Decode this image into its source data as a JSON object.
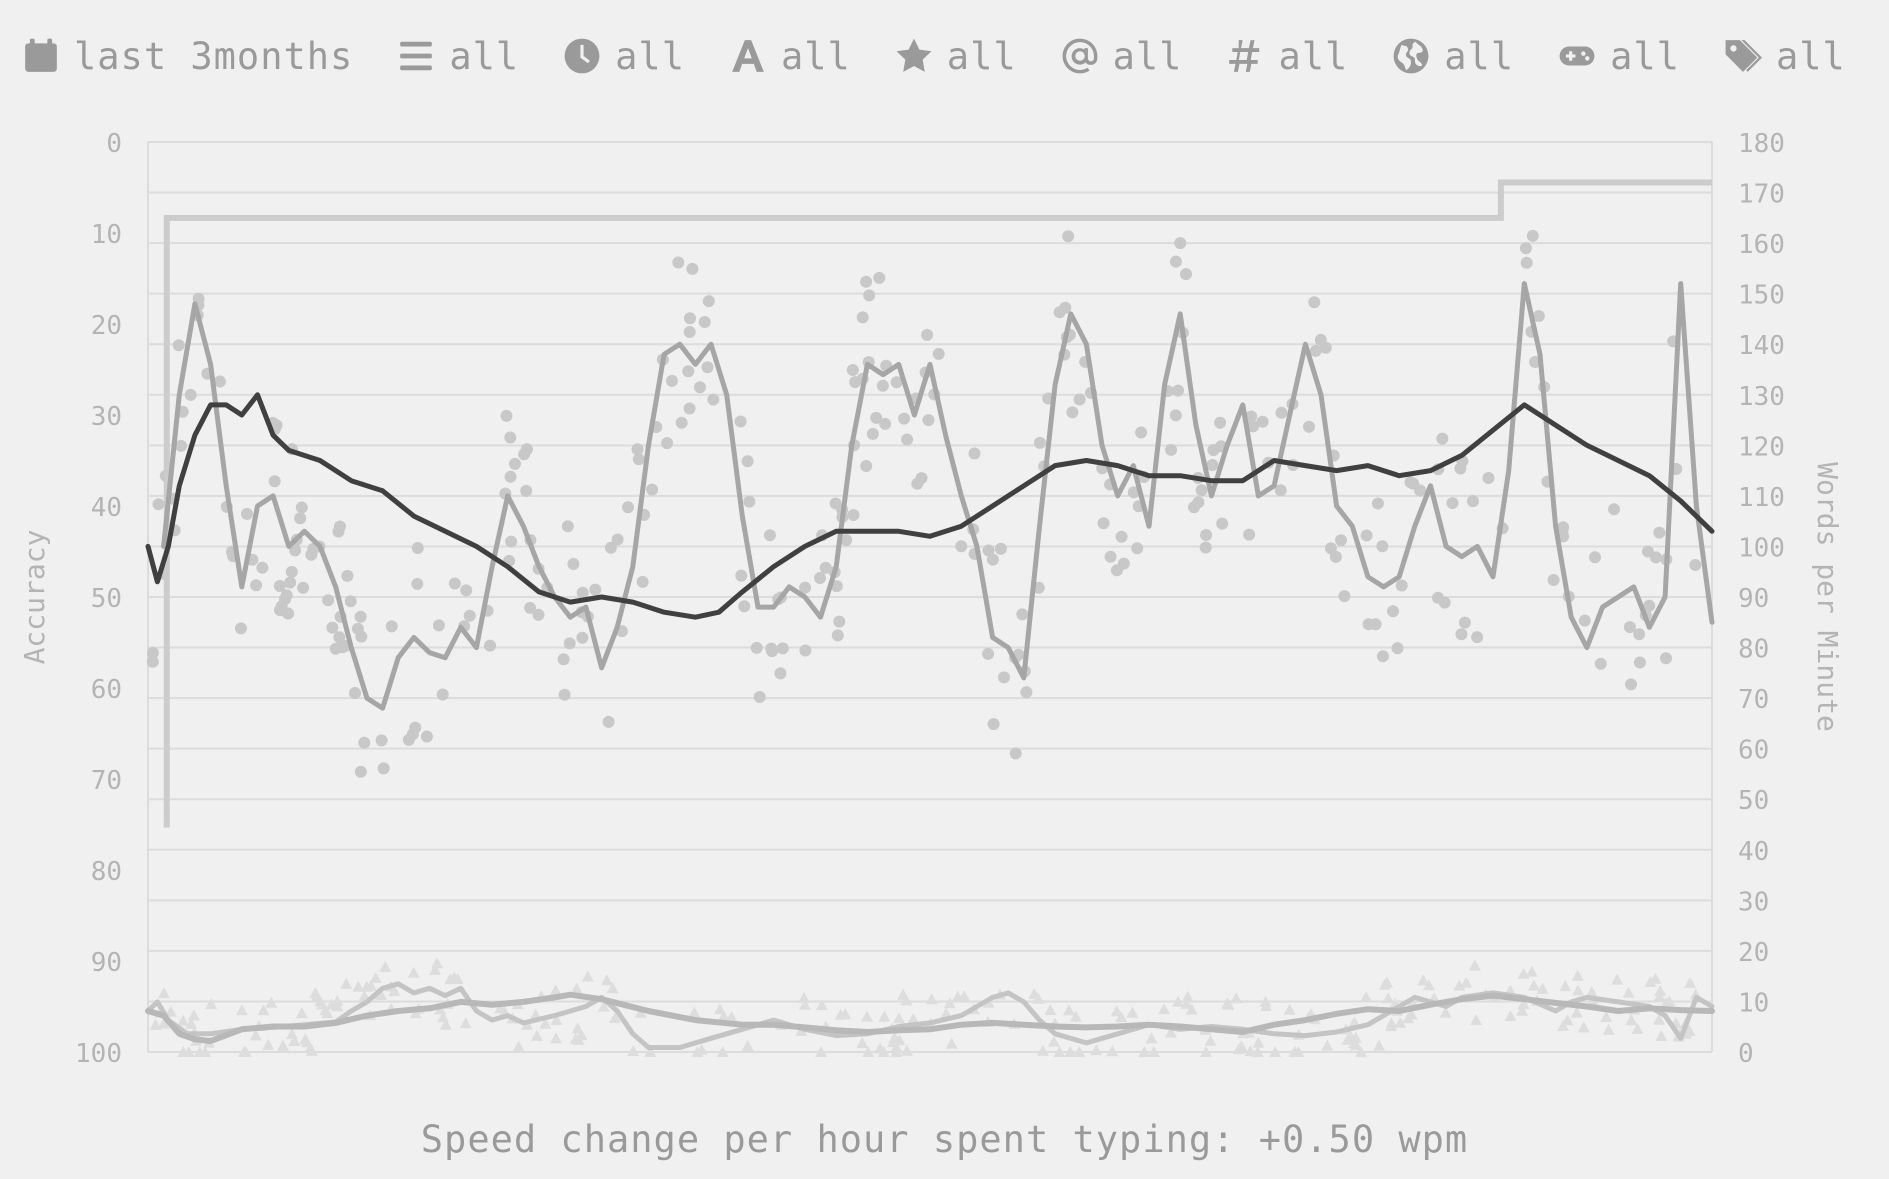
{
  "filters": [
    {
      "icon": "calendar-icon",
      "label": "last 3months"
    },
    {
      "icon": "list-icon",
      "label": "all"
    },
    {
      "icon": "clock-icon",
      "label": "all"
    },
    {
      "icon": "font-letter-icon",
      "label": "all"
    },
    {
      "icon": "star-icon",
      "label": "all"
    },
    {
      "icon": "at-sign-icon",
      "label": "all"
    },
    {
      "icon": "hashtag-icon",
      "label": "all"
    },
    {
      "icon": "globe-icon",
      "label": "all"
    },
    {
      "icon": "gamepad-icon",
      "label": "all"
    },
    {
      "icon": "tags-icon",
      "label": "all"
    }
  ],
  "footer": {
    "text": "Speed change per hour spent typing: +0.50 wpm"
  },
  "chart_data": {
    "type": "line",
    "title": "",
    "xlabel": "",
    "ylabel_left": "Accuracy",
    "ylabel_right": "Words per Minute",
    "left_axis": {
      "min": 0,
      "max": 100,
      "inverted": true,
      "ticks": [
        0,
        10,
        20,
        30,
        40,
        50,
        60,
        70,
        80,
        90,
        100
      ]
    },
    "right_axis": {
      "min": 0,
      "max": 180,
      "ticks": [
        0,
        10,
        20,
        30,
        40,
        50,
        60,
        70,
        80,
        90,
        100,
        110,
        120,
        130,
        140,
        150,
        160,
        170,
        180
      ]
    },
    "grid": true,
    "colors": {
      "wpm_points": "#c8c8c8",
      "wpm_smooth": "#a6a6a6",
      "wpm_average": "#404040",
      "personal_best": "#cccccc",
      "accuracy": "#c4c4c4",
      "accuracy_points": "#dddddd"
    },
    "x_range": [
      0,
      100
    ],
    "series": [
      {
        "key": "personal_best",
        "type": "step",
        "points": [
          [
            1.0,
            45
          ],
          [
            1.2,
            165
          ],
          [
            86.3,
            165
          ],
          [
            86.5,
            172
          ],
          [
            100,
            172
          ]
        ]
      },
      {
        "key": "wpm_average",
        "type": "line",
        "points": [
          [
            0,
            100
          ],
          [
            0.6,
            93
          ],
          [
            1.3,
            100
          ],
          [
            2,
            112
          ],
          [
            3,
            122
          ],
          [
            4,
            128
          ],
          [
            5,
            128
          ],
          [
            6,
            126
          ],
          [
            7,
            130
          ],
          [
            8,
            122
          ],
          [
            9,
            119
          ],
          [
            11,
            117
          ],
          [
            13,
            113
          ],
          [
            15,
            111
          ],
          [
            17,
            106
          ],
          [
            19,
            103
          ],
          [
            21,
            100
          ],
          [
            23,
            96
          ],
          [
            25,
            91
          ],
          [
            27,
            89
          ],
          [
            29,
            90
          ],
          [
            31,
            89
          ],
          [
            33,
            87
          ],
          [
            35,
            86
          ],
          [
            36.5,
            87
          ],
          [
            38,
            91
          ],
          [
            40,
            96
          ],
          [
            42,
            100
          ],
          [
            44,
            103
          ],
          [
            46,
            103
          ],
          [
            48,
            103
          ],
          [
            50,
            102
          ],
          [
            52,
            104
          ],
          [
            54,
            108
          ],
          [
            56,
            112
          ],
          [
            58,
            116
          ],
          [
            60,
            117
          ],
          [
            62,
            116
          ],
          [
            64,
            114
          ],
          [
            66,
            114
          ],
          [
            68,
            113
          ],
          [
            70,
            113
          ],
          [
            72,
            117
          ],
          [
            74,
            116
          ],
          [
            76,
            115
          ],
          [
            78,
            116
          ],
          [
            80,
            114
          ],
          [
            82,
            115
          ],
          [
            84,
            118
          ],
          [
            86,
            123
          ],
          [
            88,
            128
          ],
          [
            90,
            124
          ],
          [
            92,
            120
          ],
          [
            94,
            117
          ],
          [
            96,
            114
          ],
          [
            98,
            109
          ],
          [
            100,
            103
          ]
        ]
      },
      {
        "key": "wpm_smooth",
        "type": "line",
        "points": [
          [
            1,
            100
          ],
          [
            2,
            130
          ],
          [
            3,
            148
          ],
          [
            4,
            136
          ],
          [
            5,
            112
          ],
          [
            6,
            92
          ],
          [
            7,
            108
          ],
          [
            8,
            110
          ],
          [
            9,
            100
          ],
          [
            10,
            103
          ],
          [
            11,
            100
          ],
          [
            12,
            92
          ],
          [
            13,
            80
          ],
          [
            14,
            70
          ],
          [
            15,
            68
          ],
          [
            16,
            78
          ],
          [
            17,
            82
          ],
          [
            18,
            79
          ],
          [
            19,
            78
          ],
          [
            20,
            84
          ],
          [
            21,
            80
          ],
          [
            22,
            96
          ],
          [
            23,
            110
          ],
          [
            24,
            104
          ],
          [
            25,
            96
          ],
          [
            26,
            90
          ],
          [
            27,
            86
          ],
          [
            28,
            88
          ],
          [
            29,
            76
          ],
          [
            30,
            84
          ],
          [
            31,
            96
          ],
          [
            32,
            120
          ],
          [
            33,
            138
          ],
          [
            34,
            140
          ],
          [
            35,
            136
          ],
          [
            36,
            140
          ],
          [
            37,
            130
          ],
          [
            38,
            106
          ],
          [
            39,
            88
          ],
          [
            40,
            88
          ],
          [
            41,
            92
          ],
          [
            42,
            90
          ],
          [
            43,
            86
          ],
          [
            44,
            96
          ],
          [
            45,
            120
          ],
          [
            46,
            136
          ],
          [
            47,
            134
          ],
          [
            48,
            136
          ],
          [
            49,
            126
          ],
          [
            50,
            136
          ],
          [
            51,
            122
          ],
          [
            52,
            110
          ],
          [
            53,
            100
          ],
          [
            54,
            82
          ],
          [
            55,
            80
          ],
          [
            56,
            74
          ],
          [
            57,
            104
          ],
          [
            58,
            132
          ],
          [
            59,
            146
          ],
          [
            60,
            140
          ],
          [
            61,
            120
          ],
          [
            62,
            110
          ],
          [
            63,
            116
          ],
          [
            64,
            104
          ],
          [
            65,
            132
          ],
          [
            66,
            146
          ],
          [
            67,
            124
          ],
          [
            68,
            110
          ],
          [
            69,
            120
          ],
          [
            70,
            128
          ],
          [
            71,
            110
          ],
          [
            72,
            112
          ],
          [
            73,
            126
          ],
          [
            74,
            140
          ],
          [
            75,
            130
          ],
          [
            76,
            108
          ],
          [
            77,
            104
          ],
          [
            78,
            94
          ],
          [
            79,
            92
          ],
          [
            80,
            94
          ],
          [
            81,
            104
          ],
          [
            82,
            112
          ],
          [
            83,
            100
          ],
          [
            84,
            98
          ],
          [
            85,
            100
          ],
          [
            86,
            94
          ],
          [
            87,
            115
          ],
          [
            88,
            152
          ],
          [
            89,
            138
          ],
          [
            90,
            104
          ],
          [
            91,
            86
          ],
          [
            92,
            80
          ],
          [
            93,
            88
          ],
          [
            94,
            90
          ],
          [
            95,
            92
          ],
          [
            96,
            84
          ],
          [
            97,
            90
          ],
          [
            98,
            152
          ],
          [
            99,
            108
          ],
          [
            100,
            85
          ]
        ]
      },
      {
        "key": "accuracy_smooth",
        "type": "line",
        "points": [
          [
            0,
            95.5
          ],
          [
            0.6,
            94.5
          ],
          [
            1.3,
            96.5
          ],
          [
            2.5,
            98
          ],
          [
            4,
            98
          ],
          [
            6,
            97.5
          ],
          [
            8,
            97.3
          ],
          [
            10,
            97
          ],
          [
            12,
            96.7
          ],
          [
            13,
            95.5
          ],
          [
            14,
            94.5
          ],
          [
            15,
            93
          ],
          [
            16,
            92.5
          ],
          [
            17,
            93.5
          ],
          [
            18,
            93
          ],
          [
            19,
            93.8
          ],
          [
            20,
            93
          ],
          [
            21,
            95.5
          ],
          [
            22,
            96.5
          ],
          [
            23,
            96
          ],
          [
            24,
            96.8
          ],
          [
            26,
            96
          ],
          [
            28,
            95
          ],
          [
            29,
            94
          ],
          [
            30,
            95.5
          ],
          [
            31,
            98
          ],
          [
            32,
            99.5
          ],
          [
            34,
            99.5
          ],
          [
            36,
            98.5
          ],
          [
            38,
            97.5
          ],
          [
            40,
            96.5
          ],
          [
            42,
            97.5
          ],
          [
            44,
            98.2
          ],
          [
            46,
            98
          ],
          [
            48,
            97.2
          ],
          [
            50,
            96.8
          ],
          [
            52,
            96
          ],
          [
            54,
            94
          ],
          [
            55,
            93.5
          ],
          [
            56,
            94.5
          ],
          [
            57,
            96.5
          ],
          [
            58,
            98
          ],
          [
            60,
            99
          ],
          [
            62,
            98
          ],
          [
            64,
            97
          ],
          [
            66,
            97.5
          ],
          [
            68,
            97.2
          ],
          [
            70,
            97.5
          ],
          [
            72,
            98
          ],
          [
            74,
            98.2
          ],
          [
            76,
            97.8
          ],
          [
            78,
            97
          ],
          [
            80,
            95
          ],
          [
            81,
            94
          ],
          [
            82,
            94.5
          ],
          [
            83,
            95
          ],
          [
            84,
            94
          ],
          [
            86,
            93.5
          ],
          [
            88,
            94
          ],
          [
            90,
            95.5
          ],
          [
            91,
            94.5
          ],
          [
            92,
            94
          ],
          [
            94,
            94.5
          ],
          [
            96,
            95
          ],
          [
            97,
            96
          ],
          [
            98,
            98.5
          ],
          [
            99,
            94
          ],
          [
            100,
            95
          ]
        ]
      },
      {
        "key": "accuracy_average",
        "type": "line",
        "points": [
          [
            0,
            95.5
          ],
          [
            1,
            96
          ],
          [
            2,
            98
          ],
          [
            3,
            98.6
          ],
          [
            4,
            98.8
          ],
          [
            6,
            97.5
          ],
          [
            8,
            97.2
          ],
          [
            10,
            97.2
          ],
          [
            12,
            96.8
          ],
          [
            14,
            96
          ],
          [
            16,
            95.5
          ],
          [
            18,
            95.2
          ],
          [
            20,
            94.5
          ],
          [
            22,
            94.8
          ],
          [
            24,
            94.5
          ],
          [
            26,
            94
          ],
          [
            27,
            93.7
          ],
          [
            29,
            94.2
          ],
          [
            32,
            95.5
          ],
          [
            35,
            96.5
          ],
          [
            38,
            97
          ],
          [
            40,
            97
          ],
          [
            42,
            97.3
          ],
          [
            44,
            97.6
          ],
          [
            46,
            97.8
          ],
          [
            48,
            97.6
          ],
          [
            50,
            97.5
          ],
          [
            52,
            97
          ],
          [
            54,
            96.8
          ],
          [
            56,
            97
          ],
          [
            58,
            97.2
          ],
          [
            60,
            97.3
          ],
          [
            62,
            97.2
          ],
          [
            64,
            97
          ],
          [
            66,
            97.2
          ],
          [
            68,
            97.5
          ],
          [
            70,
            97.8
          ],
          [
            72,
            97
          ],
          [
            74,
            96.5
          ],
          [
            76,
            95.8
          ],
          [
            78,
            95.3
          ],
          [
            80,
            95.5
          ],
          [
            82,
            94.8
          ],
          [
            84,
            94.2
          ],
          [
            86,
            93.8
          ],
          [
            88,
            94.2
          ],
          [
            90,
            94.6
          ],
          [
            92,
            95
          ],
          [
            94,
            95.5
          ],
          [
            96,
            95.2
          ],
          [
            98,
            95.4
          ],
          [
            100,
            95.5
          ]
        ]
      }
    ]
  }
}
